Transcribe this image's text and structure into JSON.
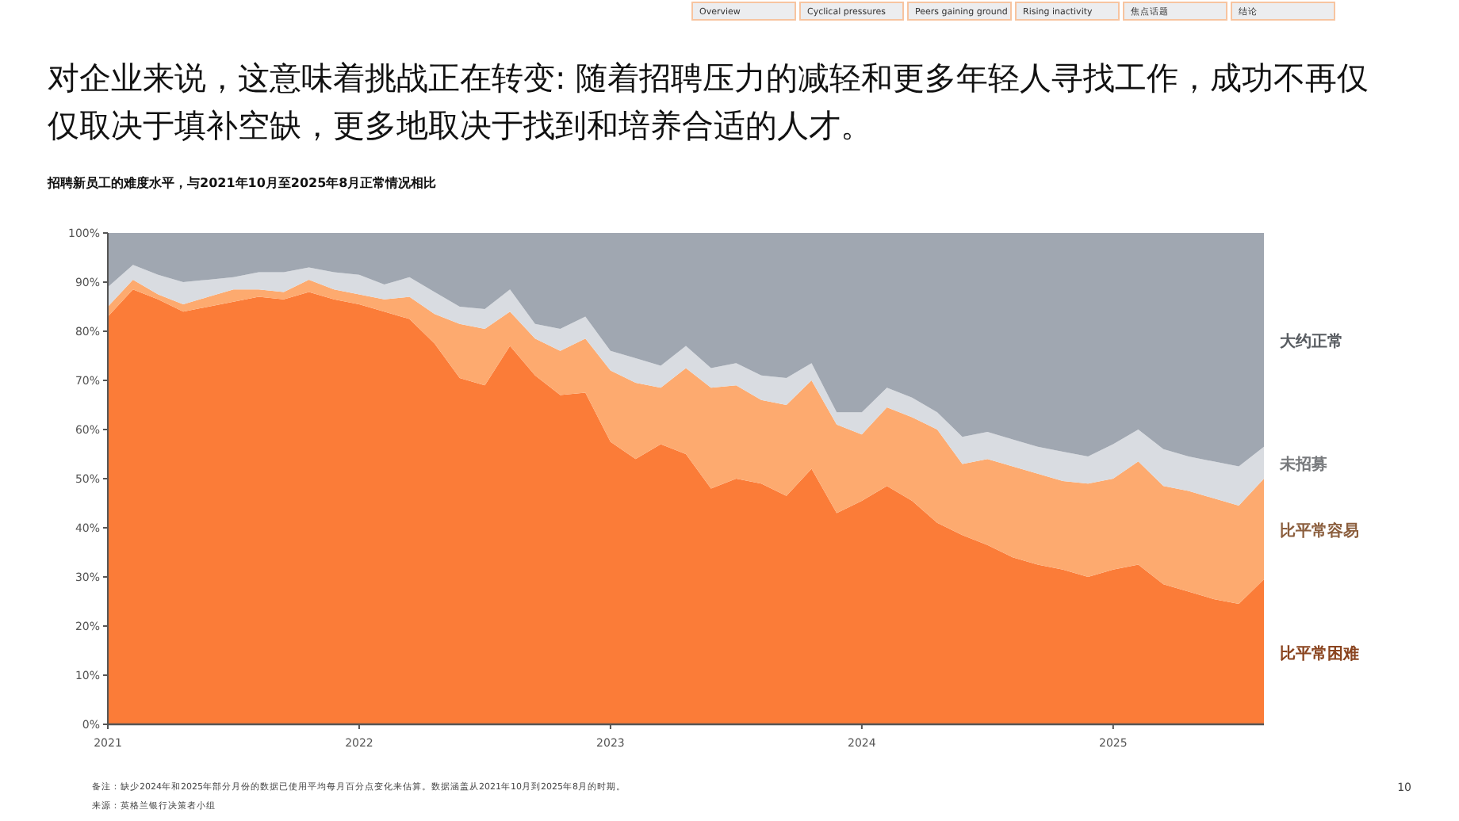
{
  "chart_data": {
    "type": "area",
    "stacked": true,
    "title": "对企业来说，这意味着挑战正在转变: 随着招聘压力的减轻和更多年轻人寻找工作，成功不再仅仅取决于填补空缺，更多地取决于找到和培养合适的人才。",
    "subtitle": "招聘新员工的难度水平，与2021年10月至2025年8月正常情况相比",
    "x": [
      2021.0,
      2021.1,
      2021.2,
      2021.3,
      2021.4,
      2021.5,
      2021.6,
      2021.7,
      2021.8,
      2021.9,
      2022.0,
      2022.1,
      2022.2,
      2022.3,
      2022.4,
      2022.5,
      2022.6,
      2022.7,
      2022.8,
      2022.9,
      2023.0,
      2023.1,
      2023.2,
      2023.3,
      2023.4,
      2023.5,
      2023.6,
      2023.7,
      2023.8,
      2023.9,
      2024.0,
      2024.1,
      2024.2,
      2024.3,
      2024.4,
      2024.5,
      2024.6,
      2024.7,
      2024.8,
      2024.9,
      2025.0,
      2025.1,
      2025.2,
      2025.3,
      2025.4,
      2025.5,
      2025.6
    ],
    "series": [
      {
        "name": "比平常困难",
        "color": "#fb7c38",
        "values": [
          83,
          88.5,
          86.5,
          84,
          85,
          86,
          87,
          86.5,
          88,
          86.5,
          85.5,
          84,
          82.5,
          77.5,
          70.5,
          69,
          77,
          71,
          67,
          67.5,
          57.5,
          54,
          57,
          55,
          48,
          50,
          49,
          46.5,
          52,
          43,
          45.5,
          48.5,
          45.5,
          41,
          38.5,
          36.5,
          34,
          32.5,
          31.5,
          30,
          31.5,
          32.5,
          28.5,
          27,
          25.5,
          24.5,
          29.5
        ]
      },
      {
        "name": "比平常容易",
        "color": "#fdaa6f",
        "values": [
          2,
          2,
          1,
          1.5,
          2,
          2.5,
          1.5,
          1.5,
          2.5,
          2,
          2,
          2.5,
          4.5,
          6,
          11,
          11.5,
          7,
          7.5,
          9,
          11,
          14.5,
          15.5,
          11.5,
          17.5,
          20.5,
          19,
          17,
          18.5,
          18,
          18,
          13.5,
          16,
          17,
          19,
          14.5,
          17.5,
          18.5,
          18.5,
          18,
          19,
          18.5,
          21,
          20,
          20.5,
          20.5,
          20,
          20.5
        ]
      },
      {
        "name": "未招募",
        "color": "#d9dce1",
        "values": [
          4,
          3,
          4,
          4.5,
          3.5,
          2.5,
          3.5,
          4,
          2.5,
          3.5,
          4,
          3,
          4,
          4.5,
          3.5,
          4,
          4.5,
          3,
          4.5,
          4.5,
          4,
          5,
          4.5,
          4.5,
          4,
          4.5,
          5,
          5.5,
          3.5,
          2.5,
          4.5,
          4,
          4,
          3.5,
          5.5,
          5.5,
          5.5,
          5.5,
          6,
          5.5,
          7,
          6.5,
          7.5,
          7,
          7.5,
          8,
          6.5
        ]
      },
      {
        "name": "大约正常",
        "color": "#a0a7b1",
        "values": [
          11,
          6.5,
          8.5,
          10,
          9.5,
          9,
          8,
          8,
          7,
          8,
          8.5,
          10.5,
          9,
          12,
          15,
          15.5,
          11.5,
          18.5,
          19.5,
          17,
          24,
          25.5,
          27,
          23,
          27.5,
          26.5,
          29,
          29.5,
          26.5,
          36.5,
          36.5,
          31.5,
          33.5,
          36.5,
          41.5,
          40.5,
          42,
          43.5,
          44.5,
          45.5,
          43,
          40,
          44,
          45.5,
          46.5,
          47.5,
          43.5
        ]
      }
    ],
    "xlim": [
      2021,
      2025.6
    ],
    "xticks": [
      2021,
      2022,
      2023,
      2024,
      2025
    ],
    "ylim": [
      0,
      100
    ],
    "yticks": [
      {
        "value": 0,
        "label": "0%"
      },
      {
        "value": 10,
        "label": "10%"
      },
      {
        "value": 20,
        "label": "20%"
      },
      {
        "value": 30,
        "label": "30%"
      },
      {
        "value": 40,
        "label": "40%"
      },
      {
        "value": 50,
        "label": "50%"
      },
      {
        "value": 60,
        "label": "60%"
      },
      {
        "value": 70,
        "label": "70%"
      },
      {
        "value": 80,
        "label": "80%"
      },
      {
        "value": 90,
        "label": "90%"
      },
      {
        "value": 100,
        "label": "100%"
      }
    ],
    "grid": false,
    "legend": false,
    "annotations": [
      "Overview",
      "Cyclical pressures",
      "Peers gaining ground",
      "Rising inactivity",
      "焦点话题",
      "结论",
      "备注：缺少2024年和2025年部分月份的数据已使用平均每月百分点变化来估算。数据涵盖从2021年10月到2025年8月的时期。",
      "来源：英格兰银行决策者小组",
      "10"
    ]
  }
}
